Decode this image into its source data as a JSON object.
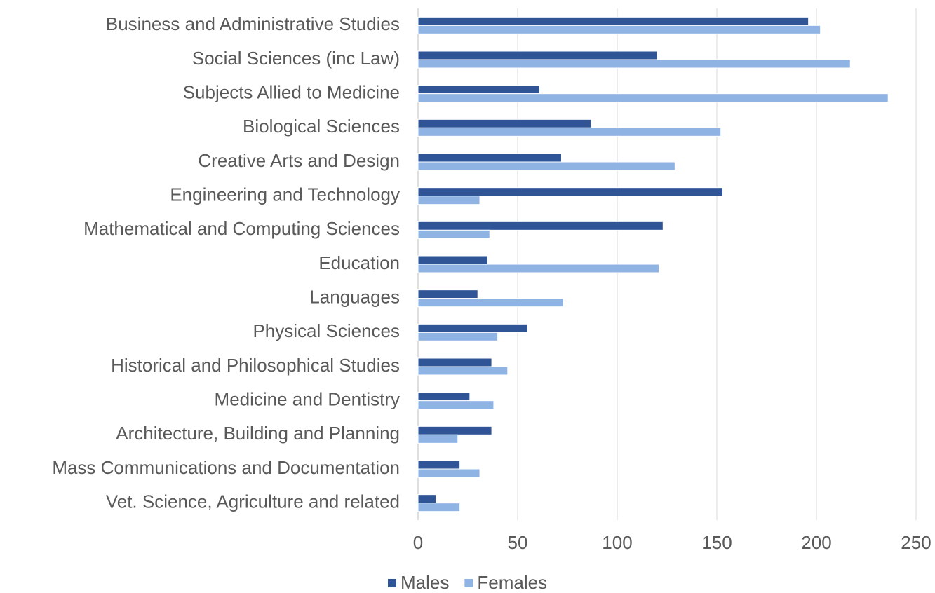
{
  "chart_data": {
    "type": "barh",
    "categories": [
      "Business and Administrative Studies",
      "Social Sciences (inc Law)",
      "Subjects Allied to Medicine",
      "Biological Sciences",
      "Creative Arts and Design",
      "Engineering and Technology",
      "Mathematical and Computing Sciences",
      "Education",
      "Languages",
      "Physical Sciences",
      "Historical and Philosophical Studies",
      "Medicine and Dentistry",
      "Architecture, Building and Planning",
      "Mass Communications and Documentation",
      "Vet. Science, Agriculture and related"
    ],
    "series": [
      {
        "name": "Males",
        "color": "#2f5597",
        "values": [
          196,
          120,
          61,
          87,
          72,
          153,
          123,
          35,
          30,
          55,
          37,
          26,
          37,
          21,
          9
        ]
      },
      {
        "name": "Females",
        "color": "#8fb4e3",
        "values": [
          202,
          217,
          236,
          152,
          129,
          31,
          36,
          121,
          73,
          40,
          45,
          38,
          20,
          31,
          21
        ]
      }
    ],
    "xlim": [
      0,
      250
    ],
    "xticks": [
      0,
      50,
      100,
      150,
      200,
      250
    ],
    "grid": true,
    "legend": "bottom"
  }
}
